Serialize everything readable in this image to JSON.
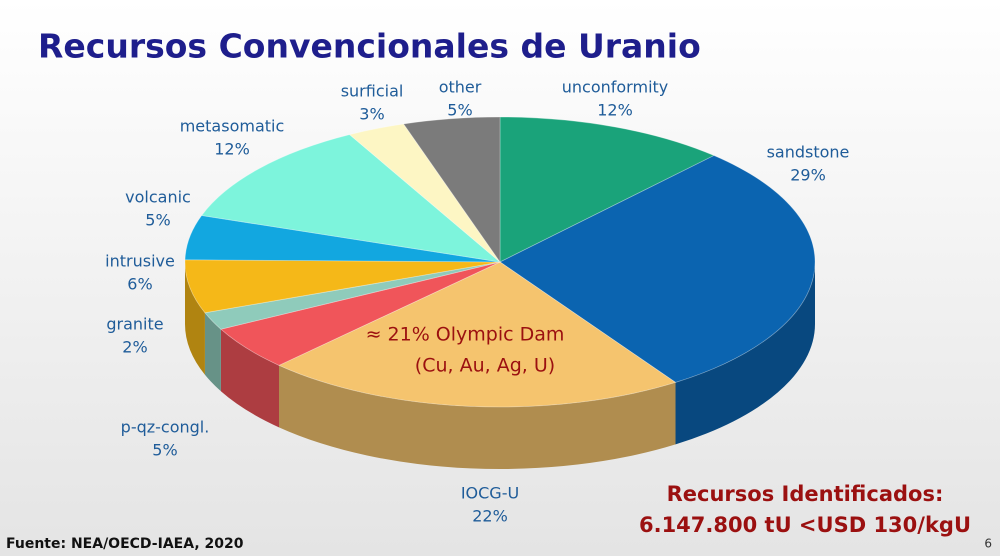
{
  "chart_data": {
    "type": "pie",
    "title": "Recursos Convencionales de Uranio",
    "categories": [
      "unconformity",
      "sandstone",
      "IOCG-U",
      "p-qz-congl.",
      "granite",
      "intrusive",
      "volcanic",
      "metasomatic",
      "surficial",
      "other"
    ],
    "values": [
      12,
      29,
      22,
      5,
      2,
      6,
      5,
      12,
      3,
      5
    ],
    "value_labels": [
      "12%",
      "29%",
      "22%",
      "5%",
      "2%",
      "6%",
      "5%",
      "12%",
      "3%",
      "5%"
    ],
    "colors": [
      "#1aa37a",
      "#0b64b0",
      "#f5c46e",
      "#f0555a",
      "#8fcbbb",
      "#f5b818",
      "#12a7e0",
      "#7df4dc",
      "#fdf6c4",
      "#7b7b7b"
    ],
    "annotations": {
      "olympic_dam": "≈ 21% Olympic Dam",
      "olympic_dam_metals": "(Cu, Au, Ag, U)",
      "resources_title": "Recursos Identificados:",
      "resources_value": "6.147.800 tU <USD 130/kgU",
      "source": "Fuente: NEA/OECD-IAEA, 2020",
      "page_number": "6"
    }
  }
}
